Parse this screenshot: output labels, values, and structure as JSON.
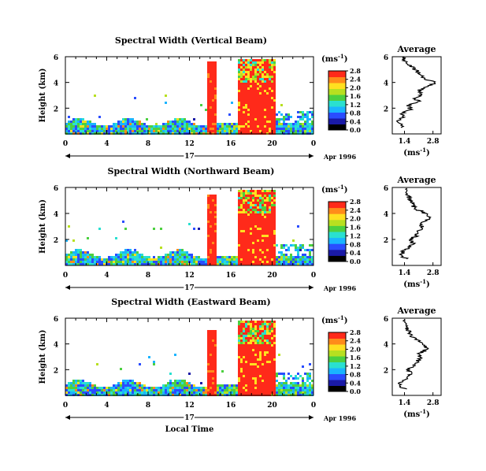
{
  "chart_data": [
    {
      "type": "heatmap",
      "title": "Spectral Width (Vertical Beam)",
      "ylabel": "Height (km)",
      "y_ticks": [
        "2",
        "4",
        "6"
      ],
      "x_ticks": [
        "0",
        "4",
        "8",
        "12",
        "16",
        "20",
        "0"
      ],
      "day_label": "17",
      "date_label": "Apr 1996",
      "xlim": [
        0,
        24
      ],
      "ylim": [
        0,
        6
      ],
      "colorbar": {
        "unit": "(ms",
        "unit_exp": "-1",
        "unit_close": ")",
        "ticks": [
          "0.0",
          "0.4",
          "0.8",
          "1.2",
          "1.6",
          "2.0",
          "2.4",
          "2.8"
        ],
        "range": [
          0,
          2.8
        ]
      },
      "average": {
        "title": "Average",
        "xlabel": "(ms",
        "xlabel_exp": "-1",
        "xlabel_close": ")",
        "x_ticks": [
          "1.4",
          "2.8"
        ],
        "y_ticks": [
          "2",
          "4",
          "6"
        ],
        "xlim": [
          0.8,
          3.2
        ],
        "ylim": [
          0,
          6
        ],
        "profile": [
          [
            0.5,
            1.3
          ],
          [
            1.0,
            1.1
          ],
          [
            1.3,
            1.35
          ],
          [
            1.6,
            1.25
          ],
          [
            1.9,
            1.7
          ],
          [
            2.2,
            1.6
          ],
          [
            2.5,
            2.1
          ],
          [
            2.8,
            1.9
          ],
          [
            3.1,
            2.3
          ],
          [
            3.4,
            2.1
          ],
          [
            3.7,
            2.6
          ],
          [
            4.0,
            2.9
          ],
          [
            4.3,
            2.4
          ],
          [
            4.6,
            2.2
          ],
          [
            4.9,
            2.0
          ],
          [
            5.2,
            1.8
          ],
          [
            5.5,
            1.5
          ],
          [
            5.8,
            1.3
          ],
          [
            6.0,
            1.4
          ]
        ]
      }
    },
    {
      "type": "heatmap",
      "title": "Spectral Width (Northward Beam)",
      "ylabel": "Height (km)",
      "y_ticks": [
        "2",
        "4",
        "6"
      ],
      "x_ticks": [
        "0",
        "4",
        "8",
        "12",
        "16",
        "20",
        "0"
      ],
      "day_label": "17",
      "date_label": "Apr 1996",
      "xlim": [
        0,
        24
      ],
      "ylim": [
        0,
        6
      ],
      "colorbar": {
        "unit": "(ms",
        "unit_exp": "-1",
        "unit_close": ")",
        "ticks": [
          "0.0",
          "0.4",
          "0.8",
          "1.2",
          "1.6",
          "2.0",
          "2.4",
          "2.8"
        ],
        "range": [
          0,
          2.8
        ]
      },
      "average": {
        "title": "Average",
        "xlabel": "(ms",
        "xlabel_exp": "-1",
        "xlabel_close": ")",
        "x_ticks": [
          "1.4",
          "2.8"
        ],
        "y_ticks": [
          "2",
          "4",
          "6"
        ],
        "xlim": [
          0.8,
          3.2
        ],
        "ylim": [
          0,
          6
        ],
        "profile": [
          [
            0.5,
            1.5
          ],
          [
            0.8,
            1.2
          ],
          [
            1.1,
            1.35
          ],
          [
            1.4,
            1.6
          ],
          [
            1.7,
            1.8
          ],
          [
            2.0,
            1.7
          ],
          [
            2.3,
            2.0
          ],
          [
            2.6,
            2.1
          ],
          [
            2.9,
            2.3
          ],
          [
            3.2,
            2.2
          ],
          [
            3.5,
            2.5
          ],
          [
            3.8,
            2.6
          ],
          [
            4.1,
            2.3
          ],
          [
            4.4,
            1.9
          ],
          [
            4.7,
            1.8
          ],
          [
            5.0,
            1.7
          ],
          [
            5.3,
            1.6
          ],
          [
            5.6,
            1.5
          ],
          [
            6.0,
            1.4
          ]
        ]
      }
    },
    {
      "type": "heatmap",
      "title": "Spectral Width (Eastward Beam)",
      "ylabel": "Height (km)",
      "y_ticks": [
        "2",
        "4",
        "6"
      ],
      "x_ticks": [
        "0",
        "4",
        "8",
        "12",
        "16",
        "20",
        "0"
      ],
      "day_label": "17",
      "date_label": "Apr 1996",
      "xlabel": "Local Time",
      "xlim": [
        0,
        24
      ],
      "ylim": [
        0,
        6
      ],
      "colorbar": {
        "unit": "(ms",
        "unit_exp": "-1",
        "unit_close": ")",
        "ticks": [
          "0.0",
          "0.4",
          "0.8",
          "1.2",
          "1.6",
          "2.0",
          "2.4",
          "2.8"
        ],
        "range": [
          0,
          2.8
        ]
      },
      "average": {
        "title": "Average",
        "xlabel": "(ms",
        "xlabel_exp": "-1",
        "xlabel_close": ")",
        "x_ticks": [
          "1.4",
          "2.8"
        ],
        "y_ticks": [
          "2",
          "4",
          "6"
        ],
        "xlim": [
          0.8,
          3.2
        ],
        "ylim": [
          0,
          6
        ],
        "profile": [
          [
            0.5,
            1.4
          ],
          [
            0.8,
            1.1
          ],
          [
            1.1,
            1.3
          ],
          [
            1.4,
            1.5
          ],
          [
            1.7,
            1.7
          ],
          [
            2.0,
            1.6
          ],
          [
            2.3,
            1.9
          ],
          [
            2.6,
            2.0
          ],
          [
            2.9,
            2.2
          ],
          [
            3.2,
            2.1
          ],
          [
            3.5,
            2.4
          ],
          [
            3.8,
            2.5
          ],
          [
            4.1,
            2.3
          ],
          [
            4.4,
            1.9
          ],
          [
            4.7,
            1.7
          ],
          [
            5.0,
            1.6
          ],
          [
            5.3,
            1.5
          ],
          [
            5.6,
            1.4
          ],
          [
            6.0,
            1.3
          ]
        ]
      }
    }
  ],
  "colors": {
    "colormap": [
      "#000000",
      "#1a1aa6",
      "#2a4dff",
      "#1ab4ff",
      "#2ae0d0",
      "#4cd040",
      "#b8e020",
      "#ffe020",
      "#ff8c1a",
      "#ff2a1a"
    ]
  }
}
